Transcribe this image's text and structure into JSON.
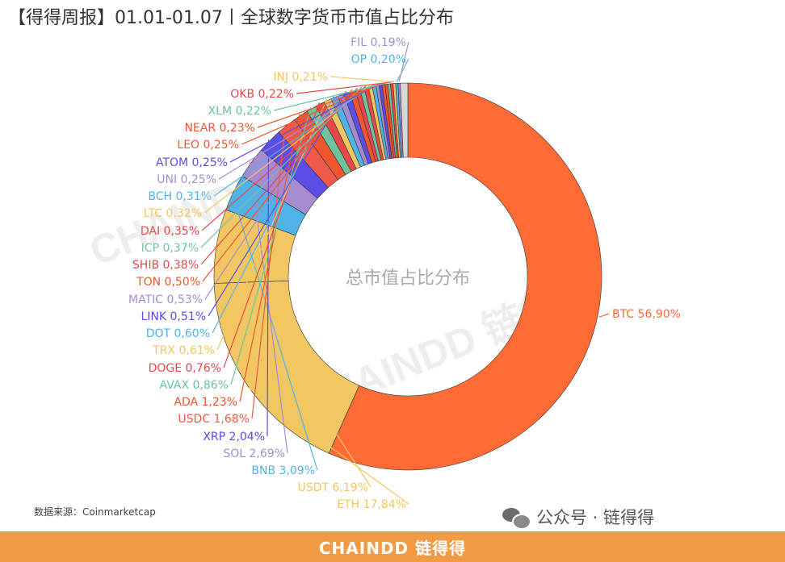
{
  "header": {
    "title": "【得得周报】01.01-01.07丨全球数字货币市值占比分布"
  },
  "source": "数据来源：Coinmarketcap",
  "wechat_label": "公众号 · 链得得",
  "footer_logo": "CHAINDD 链得得",
  "chart_data": {
    "type": "donut",
    "title": "",
    "center_label": "总市值占比分布",
    "watermark_text": "CHAINDD 链得得",
    "slices": [
      {
        "label": "BTC",
        "value": 56.9,
        "text": "BTC 56,90%",
        "color": "#ff6a35"
      },
      {
        "label": "ETH",
        "value": 17.84,
        "text": "ETH 17,84%",
        "color": "#f2c660"
      },
      {
        "label": "USDT",
        "value": 6.19,
        "text": "USDT 6,19%",
        "color": "#f2c660"
      },
      {
        "label": "BNB",
        "value": 3.09,
        "text": "BNB 3,09%",
        "color": "#4fb3e8"
      },
      {
        "label": "SOL",
        "value": 2.69,
        "text": "SOL 2,69%",
        "color": "#a58cd0"
      },
      {
        "label": "XRP",
        "value": 2.04,
        "text": "XRP 2,04%",
        "color": "#5a4ee6"
      },
      {
        "label": "USDC",
        "value": 1.68,
        "text": "USDC 1,68%",
        "color": "#ee5a4a"
      },
      {
        "label": "ADA",
        "value": 1.23,
        "text": "ADA 1,23%",
        "color": "#ef5530"
      },
      {
        "label": "AVAX",
        "value": 0.86,
        "text": "AVAX 0,86%",
        "color": "#6bc49e"
      },
      {
        "label": "DOGE",
        "value": 0.76,
        "text": "DOGE 0,76%",
        "color": "#e9484a"
      },
      {
        "label": "TRX",
        "value": 0.61,
        "text": "TRX 0,61%",
        "color": "#f2c660"
      },
      {
        "label": "DOT",
        "value": 0.6,
        "text": "DOT 0,60%",
        "color": "#4fb3e8"
      },
      {
        "label": "MATIC",
        "value": 0.53,
        "text": "MATIC 0,53%",
        "color": "#a58cd0"
      },
      {
        "label": "LINK",
        "value": 0.51,
        "text": "LINK 0,51%",
        "color": "#5a4ee6"
      },
      {
        "label": "TON",
        "value": 0.5,
        "text": "TON 0,50%",
        "color": "#ef5530"
      },
      {
        "label": "SHIB",
        "value": 0.38,
        "text": "SHIB 0,38%",
        "color": "#e9484a"
      },
      {
        "label": "ICP",
        "value": 0.37,
        "text": "ICP 0,37%",
        "color": "#6bc49e"
      },
      {
        "label": "DAI",
        "value": 0.35,
        "text": "DAI 0,35%",
        "color": "#e9484a"
      },
      {
        "label": "LTC",
        "value": 0.32,
        "text": "LTC 0,32%",
        "color": "#f2c660"
      },
      {
        "label": "BCH",
        "value": 0.31,
        "text": "BCH 0,31%",
        "color": "#4fb3e8"
      },
      {
        "label": "UNI",
        "value": 0.25,
        "text": "UNI 0,25%",
        "color": "#a58cd0"
      },
      {
        "label": "ATOM",
        "value": 0.25,
        "text": "ATOM 0,25%",
        "color": "#5a4ee6"
      },
      {
        "label": "LEO",
        "value": 0.25,
        "text": "LEO 0,25%",
        "color": "#ef5530"
      },
      {
        "label": "NEAR",
        "value": 0.23,
        "text": "NEAR 0,23%",
        "color": "#ef5530"
      },
      {
        "label": "XLM",
        "value": 0.22,
        "text": "XLM 0,22%",
        "color": "#6bc49e"
      },
      {
        "label": "OKB",
        "value": 0.22,
        "text": "OKB 0,22%",
        "color": "#e9484a"
      },
      {
        "label": "INJ",
        "value": 0.21,
        "text": "INJ 0,21%",
        "color": "#f2c660"
      },
      {
        "label": "OP",
        "value": 0.2,
        "text": "OP 0,20%",
        "color": "#4fb3e8"
      },
      {
        "label": "FIL",
        "value": 0.19,
        "text": "FIL 0,19%",
        "color": "#a58cd0"
      },
      {
        "label": "",
        "value": 0.62,
        "text": "",
        "color": "#d7d7d7"
      }
    ]
  }
}
